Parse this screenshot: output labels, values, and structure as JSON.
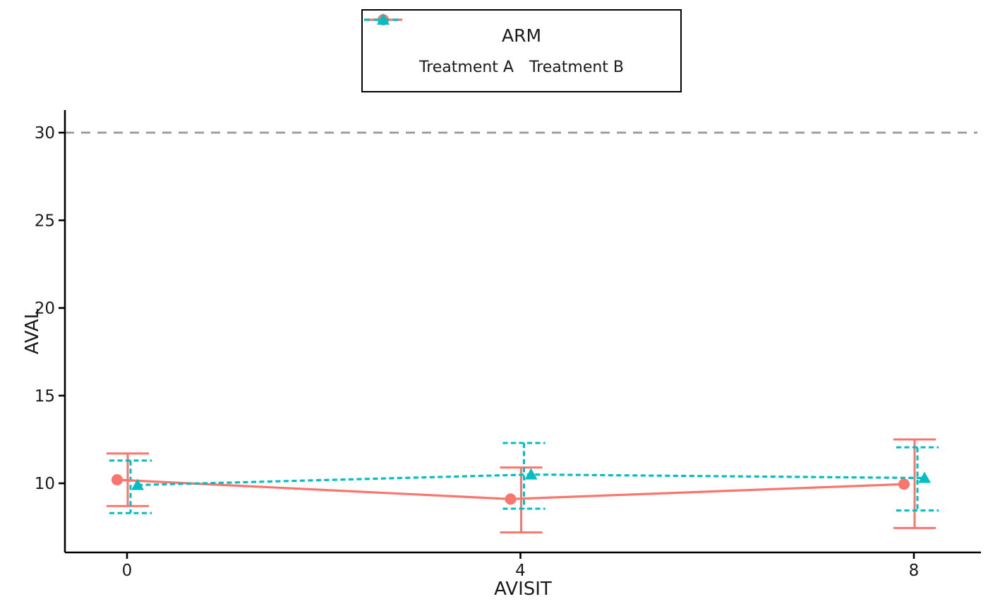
{
  "chart_data": {
    "type": "line",
    "xlabel": "AVISIT",
    "ylabel": "AVAL",
    "x": [
      0,
      4,
      8
    ],
    "x_tick_labels": [
      "0",
      "4",
      "8"
    ],
    "y_ticks": [
      10,
      15,
      20,
      25,
      30
    ],
    "ylim": [
      6.2,
      31.3
    ],
    "xlim": [
      -0.63,
      8.68
    ],
    "grid": "off",
    "legend": {
      "title": "ARM",
      "position": "top-center",
      "border": true
    },
    "reference_line": {
      "y": 30,
      "style": "dashed",
      "color": "#999999"
    },
    "series": [
      {
        "name": "Treatment A",
        "color": "#F8766D",
        "marker": "circle",
        "linestyle": "solid",
        "means": [
          10.2,
          9.1,
          9.95
        ],
        "ci_lower": [
          8.7,
          7.2,
          7.45
        ],
        "ci_upper": [
          11.7,
          10.9,
          12.5
        ]
      },
      {
        "name": "Treatment B",
        "color": "#00BFC4",
        "marker": "triangle",
        "linestyle": "dashed",
        "means": [
          9.9,
          10.5,
          10.3
        ],
        "ci_lower": [
          8.3,
          8.55,
          8.45
        ],
        "ci_upper": [
          11.3,
          12.3,
          12.05
        ]
      }
    ],
    "axis_color": "#000000",
    "text_color": "#1a1a1a"
  }
}
